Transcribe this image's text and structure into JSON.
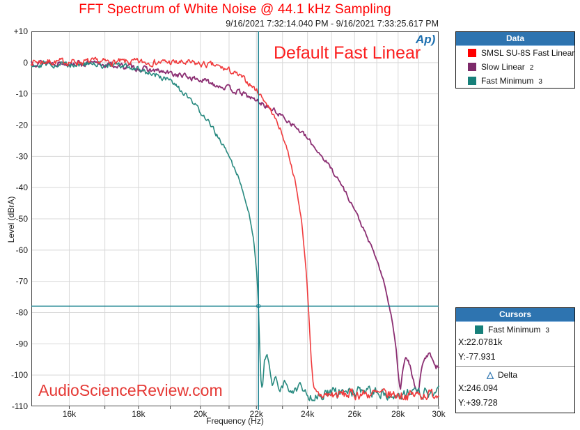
{
  "watermark": "AudioScienceReview.com",
  "ap_logo": {
    "text": "Ap",
    "swoosh": ")"
  },
  "panels": {
    "data": {
      "header": "Data",
      "items": [
        {
          "label": "SMSL SU-8S Fast Linear",
          "seq": "",
          "color": "#ff0000"
        },
        {
          "label": "Slow Linear",
          "seq": "2",
          "color": "#7d2a6a"
        },
        {
          "label": "Fast Minimum",
          "seq": "3",
          "color": "#17807a"
        }
      ]
    },
    "cursors": {
      "header": "Cursors",
      "series": {
        "label": "Fast Minimum",
        "seq": "3",
        "color": "#17807a"
      },
      "x_value": "X:22.0781k",
      "y_value": "Y:-77.931",
      "delta": {
        "label": "Delta",
        "x_value": "X:246.094",
        "y_value": "Y:+39.728"
      }
    }
  },
  "chart_data": {
    "type": "line",
    "title": "FFT Spectrum of White Noise @ 44.1 kHz Sampling",
    "subtitle": "9/16/2021 7:32:14.040 PM - 9/16/2021 7:33:25.617 PM",
    "annotation": "Default Fast Linear",
    "grid": true,
    "grid_color": "#d8d8d8",
    "frame_color": "#4a4a4a",
    "text_color": "#1a1a1a",
    "x_axis": {
      "label": "Frequency (Hz)",
      "scale": "log",
      "min_hz": 15000,
      "max_hz": 30000,
      "minor_grid_step_hz": 1000,
      "ticks": [
        {
          "hz": 16000,
          "label": "16k"
        },
        {
          "hz": 18000,
          "label": "18k"
        },
        {
          "hz": 20000,
          "label": "20k"
        },
        {
          "hz": 22000,
          "label": "22k"
        },
        {
          "hz": 24000,
          "label": "24k"
        },
        {
          "hz": 26000,
          "label": "26k"
        },
        {
          "hz": 28000,
          "label": "28k"
        },
        {
          "hz": 30000,
          "label": "30k"
        }
      ]
    },
    "y_axis": {
      "label": "Level (dBrA)",
      "scale": "linear",
      "min_db": -110,
      "max_db": 10,
      "ticks": [
        {
          "db": 10,
          "label": "+10"
        },
        {
          "db": 0,
          "label": "0"
        },
        {
          "db": -10,
          "label": "-10"
        },
        {
          "db": -20,
          "label": "-20"
        },
        {
          "db": -30,
          "label": "-30"
        },
        {
          "db": -40,
          "label": "-40"
        },
        {
          "db": -50,
          "label": "-50"
        },
        {
          "db": -60,
          "label": "-60"
        },
        {
          "db": -70,
          "label": "-70"
        },
        {
          "db": -80,
          "label": "-80"
        },
        {
          "db": -90,
          "label": "-90"
        },
        {
          "db": -100,
          "label": "-100"
        },
        {
          "db": -110,
          "label": "-110"
        }
      ]
    },
    "cursor": {
      "x_hz": 22078.1,
      "y_db": -77.931,
      "color": "#0e7b8a"
    },
    "noise_floor_db": -108.2,
    "series": [
      {
        "name": "Slow Linear 2",
        "color": "#8b2e72",
        "width": 1.8,
        "seed": 13,
        "noise_db": 0.8,
        "points": [
          [
            15000,
            0.1
          ],
          [
            16000,
            -0.1
          ],
          [
            17000,
            -0.6
          ],
          [
            17800,
            -1.5
          ],
          [
            18600,
            -2.8
          ],
          [
            19400,
            -4.2
          ],
          [
            20200,
            -6.0
          ],
          [
            20900,
            -8.0
          ],
          [
            21500,
            -10.0
          ],
          [
            22078,
            -12.5
          ],
          [
            22700,
            -15.5
          ],
          [
            23300,
            -19.0
          ],
          [
            23900,
            -23.5
          ],
          [
            24500,
            -29.0
          ],
          [
            25000,
            -34.0
          ],
          [
            25500,
            -40.0
          ],
          [
            26000,
            -47.0
          ],
          [
            26500,
            -55.0
          ],
          [
            27000,
            -63.0
          ],
          [
            27400,
            -72.0
          ],
          [
            27700,
            -82.0
          ],
          [
            27900,
            -91.0
          ],
          [
            28000,
            -99.0
          ],
          [
            28100,
            -105.0
          ],
          [
            28250,
            -97.0
          ],
          [
            28400,
            -94.5
          ],
          [
            28550,
            -96.5
          ],
          [
            28700,
            -101.0
          ],
          [
            28850,
            -105.0
          ],
          [
            29000,
            -104.0
          ],
          [
            29150,
            -98.0
          ],
          [
            29300,
            -95.0
          ],
          [
            29500,
            -93.0
          ],
          [
            29700,
            -94.5
          ],
          [
            29850,
            -97.0
          ],
          [
            30000,
            -97.5
          ]
        ]
      },
      {
        "name": "Fast Minimum 3",
        "color": "#27897f",
        "width": 1.6,
        "seed": 29,
        "noise_db": 0.9,
        "points": [
          [
            15000,
            -0.4
          ],
          [
            16500,
            -0.5
          ],
          [
            17400,
            -1.0
          ],
          [
            18000,
            -2.0
          ],
          [
            18500,
            -3.8
          ],
          [
            19000,
            -6.0
          ],
          [
            19400,
            -9.5
          ],
          [
            19800,
            -13.5
          ],
          [
            20200,
            -18.0
          ],
          [
            20600,
            -23.5
          ],
          [
            21000,
            -30.0
          ],
          [
            21400,
            -38.0
          ],
          [
            21700,
            -47.0
          ],
          [
            21900,
            -57.0
          ],
          [
            22020,
            -68.0
          ],
          [
            22078,
            -77.9
          ],
          [
            22120,
            -90.0
          ],
          [
            22160,
            -100.0
          ],
          [
            22220,
            -105.0
          ],
          [
            22300,
            -96.0
          ],
          [
            22400,
            -93.5
          ],
          [
            22500,
            -98.0
          ],
          [
            22600,
            -104.0
          ],
          [
            22750,
            -100.0
          ],
          [
            22900,
            -106.0
          ],
          [
            23100,
            -102.0
          ],
          [
            23400,
            -106.0
          ],
          [
            23700,
            -103.0
          ],
          [
            24000,
            -106.5
          ],
          [
            26000,
            -105.5
          ],
          [
            28000,
            -106.0
          ],
          [
            30000,
            -105.5
          ]
        ]
      },
      {
        "name": "SMSL SU-8S Fast Linear",
        "color": "#f03a3c",
        "width": 1.6,
        "seed": 7,
        "noise_db": 0.9,
        "points": [
          [
            15000,
            0.3
          ],
          [
            17000,
            0.2
          ],
          [
            19000,
            0.1
          ],
          [
            19800,
            -0.3
          ],
          [
            20500,
            -1.0
          ],
          [
            21000,
            -2.5
          ],
          [
            21500,
            -5.0
          ],
          [
            21900,
            -8.0
          ],
          [
            22078,
            -9.5
          ],
          [
            22300,
            -12.0
          ],
          [
            22600,
            -16.0
          ],
          [
            22900,
            -21.0
          ],
          [
            23200,
            -28.0
          ],
          [
            23500,
            -38.0
          ],
          [
            23750,
            -50.0
          ],
          [
            23950,
            -67.0
          ],
          [
            24050,
            -80.0
          ],
          [
            24150,
            -95.0
          ],
          [
            24250,
            -105.0
          ],
          [
            24400,
            -106.5
          ],
          [
            26500,
            -106.0
          ],
          [
            28500,
            -106.5
          ],
          [
            30000,
            -106.0
          ]
        ]
      }
    ]
  }
}
